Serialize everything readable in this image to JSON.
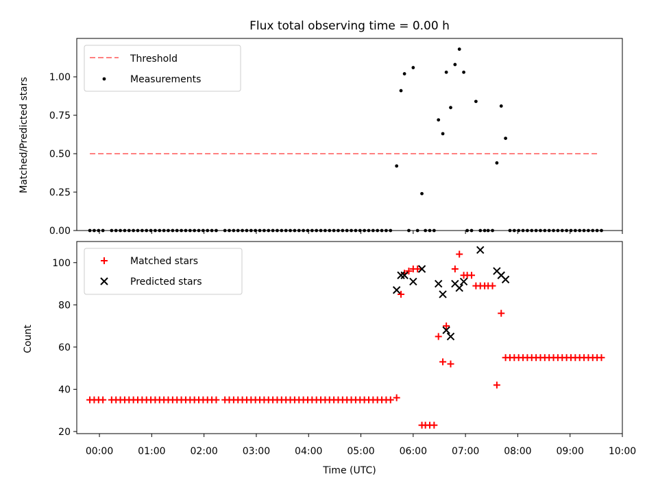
{
  "chart_data": [
    {
      "type": "scatter",
      "title": "Flux total observing time = 0.00 h",
      "xlabel": "",
      "ylabel": "Matched/Predicted stars",
      "xlim": [
        "23:34",
        "10:00"
      ],
      "ylim": [
        0,
        1.25
      ],
      "yticks": [
        "0.00",
        "0.25",
        "0.50",
        "0.75",
        "1.00"
      ],
      "legend": {
        "position": "upper-left",
        "entries": [
          "Threshold",
          "Measurements"
        ]
      },
      "series": [
        {
          "name": "Threshold",
          "kind": "dashed-line",
          "color": "#ff7f7f",
          "points": [
            [
              "23:49",
              0.5
            ],
            [
              "09:34",
              0.5
            ]
          ]
        },
        {
          "name": "Measurements",
          "kind": "scatter",
          "marker": "dot",
          "color": "#000000",
          "points": [
            [
              "23:49",
              0
            ],
            [
              "23:54",
              0
            ],
            [
              "23:59",
              0
            ],
            [
              "00:04",
              0
            ],
            [
              "00:14",
              0
            ],
            [
              "00:19",
              0
            ],
            [
              "00:24",
              0
            ],
            [
              "00:29",
              0
            ],
            [
              "00:34",
              0
            ],
            [
              "00:39",
              0
            ],
            [
              "00:44",
              0
            ],
            [
              "00:49",
              0
            ],
            [
              "00:54",
              0
            ],
            [
              "00:59",
              0
            ],
            [
              "01:04",
              0
            ],
            [
              "01:09",
              0
            ],
            [
              "01:14",
              0
            ],
            [
              "01:19",
              0
            ],
            [
              "01:24",
              0
            ],
            [
              "01:29",
              0
            ],
            [
              "01:34",
              0
            ],
            [
              "01:39",
              0
            ],
            [
              "01:44",
              0
            ],
            [
              "01:49",
              0
            ],
            [
              "01:54",
              0
            ],
            [
              "01:59",
              0
            ],
            [
              "02:04",
              0
            ],
            [
              "02:09",
              0
            ],
            [
              "02:14",
              0
            ],
            [
              "02:24",
              0
            ],
            [
              "02:29",
              0
            ],
            [
              "02:34",
              0
            ],
            [
              "02:39",
              0
            ],
            [
              "02:44",
              0
            ],
            [
              "02:49",
              0
            ],
            [
              "02:54",
              0
            ],
            [
              "02:59",
              0
            ],
            [
              "03:04",
              0
            ],
            [
              "03:09",
              0
            ],
            [
              "03:14",
              0
            ],
            [
              "03:19",
              0
            ],
            [
              "03:24",
              0
            ],
            [
              "03:29",
              0
            ],
            [
              "03:34",
              0
            ],
            [
              "03:39",
              0
            ],
            [
              "03:44",
              0
            ],
            [
              "03:49",
              0
            ],
            [
              "03:54",
              0
            ],
            [
              "03:59",
              0
            ],
            [
              "04:04",
              0
            ],
            [
              "04:09",
              0
            ],
            [
              "04:14",
              0
            ],
            [
              "04:19",
              0
            ],
            [
              "04:24",
              0
            ],
            [
              "04:29",
              0
            ],
            [
              "04:34",
              0
            ],
            [
              "04:39",
              0
            ],
            [
              "04:44",
              0
            ],
            [
              "04:49",
              0
            ],
            [
              "04:54",
              0
            ],
            [
              "04:59",
              0
            ],
            [
              "05:04",
              0
            ],
            [
              "05:09",
              0
            ],
            [
              "05:14",
              0
            ],
            [
              "05:19",
              0
            ],
            [
              "05:24",
              0
            ],
            [
              "05:29",
              0
            ],
            [
              "05:34",
              0
            ],
            [
              "05:41",
              0.42
            ],
            [
              "05:46",
              0.91
            ],
            [
              "05:50",
              1.02
            ],
            [
              "05:55",
              0
            ],
            [
              "06:00",
              1.06
            ],
            [
              "06:05",
              0
            ],
            [
              "06:10",
              0.24
            ],
            [
              "06:14",
              0
            ],
            [
              "06:19",
              0
            ],
            [
              "06:24",
              0
            ],
            [
              "06:29",
              0.72
            ],
            [
              "06:34",
              0.63
            ],
            [
              "06:38",
              1.03
            ],
            [
              "06:43",
              0.8
            ],
            [
              "06:48",
              1.08
            ],
            [
              "06:53",
              1.18
            ],
            [
              "06:58",
              1.03
            ],
            [
              "07:02",
              0
            ],
            [
              "07:07",
              0
            ],
            [
              "07:12",
              0.84
            ],
            [
              "07:17",
              0
            ],
            [
              "07:22",
              0
            ],
            [
              "07:26",
              0
            ],
            [
              "07:31",
              0
            ],
            [
              "07:36",
              0.44
            ],
            [
              "07:41",
              0.81
            ],
            [
              "07:46",
              0.6
            ],
            [
              "07:51",
              0
            ],
            [
              "07:56",
              0
            ],
            [
              "08:01",
              0
            ],
            [
              "08:06",
              0
            ],
            [
              "08:11",
              0
            ],
            [
              "08:16",
              0
            ],
            [
              "08:21",
              0
            ],
            [
              "08:26",
              0
            ],
            [
              "08:31",
              0
            ],
            [
              "08:36",
              0
            ],
            [
              "08:41",
              0
            ],
            [
              "08:46",
              0
            ],
            [
              "08:51",
              0
            ],
            [
              "08:56",
              0
            ],
            [
              "09:01",
              0
            ],
            [
              "09:06",
              0
            ],
            [
              "09:11",
              0
            ],
            [
              "09:16",
              0
            ],
            [
              "09:21",
              0
            ],
            [
              "09:26",
              0
            ],
            [
              "09:31",
              0
            ],
            [
              "09:36",
              0
            ]
          ]
        }
      ]
    },
    {
      "type": "scatter",
      "title": "",
      "xlabel": "Time (UTC)",
      "ylabel": "Count",
      "xlim": [
        "23:34",
        "10:00"
      ],
      "ylim": [
        19,
        110
      ],
      "xticks": [
        "00:00",
        "01:00",
        "02:00",
        "03:00",
        "04:00",
        "05:00",
        "06:00",
        "07:00",
        "08:00",
        "09:00",
        "10:00"
      ],
      "yticks": [
        "20",
        "40",
        "60",
        "80",
        "100"
      ],
      "legend": {
        "position": "upper-left",
        "entries": [
          "Matched stars",
          "Predicted stars"
        ]
      },
      "series": [
        {
          "name": "Matched stars",
          "kind": "scatter",
          "marker": "plus",
          "color": "#ff0000",
          "points": [
            [
              "23:49",
              35
            ],
            [
              "23:54",
              35
            ],
            [
              "23:59",
              35
            ],
            [
              "00:04",
              35
            ],
            [
              "00:14",
              35
            ],
            [
              "00:19",
              35
            ],
            [
              "00:24",
              35
            ],
            [
              "00:29",
              35
            ],
            [
              "00:34",
              35
            ],
            [
              "00:39",
              35
            ],
            [
              "00:44",
              35
            ],
            [
              "00:49",
              35
            ],
            [
              "00:54",
              35
            ],
            [
              "00:59",
              35
            ],
            [
              "01:04",
              35
            ],
            [
              "01:09",
              35
            ],
            [
              "01:14",
              35
            ],
            [
              "01:19",
              35
            ],
            [
              "01:24",
              35
            ],
            [
              "01:29",
              35
            ],
            [
              "01:34",
              35
            ],
            [
              "01:39",
              35
            ],
            [
              "01:44",
              35
            ],
            [
              "01:49",
              35
            ],
            [
              "01:54",
              35
            ],
            [
              "01:59",
              35
            ],
            [
              "02:04",
              35
            ],
            [
              "02:09",
              35
            ],
            [
              "02:14",
              35
            ],
            [
              "02:24",
              35
            ],
            [
              "02:29",
              35
            ],
            [
              "02:34",
              35
            ],
            [
              "02:39",
              35
            ],
            [
              "02:44",
              35
            ],
            [
              "02:49",
              35
            ],
            [
              "02:54",
              35
            ],
            [
              "02:59",
              35
            ],
            [
              "03:04",
              35
            ],
            [
              "03:09",
              35
            ],
            [
              "03:14",
              35
            ],
            [
              "03:19",
              35
            ],
            [
              "03:24",
              35
            ],
            [
              "03:29",
              35
            ],
            [
              "03:34",
              35
            ],
            [
              "03:39",
              35
            ],
            [
              "03:44",
              35
            ],
            [
              "03:49",
              35
            ],
            [
              "03:54",
              35
            ],
            [
              "03:59",
              35
            ],
            [
              "04:04",
              35
            ],
            [
              "04:09",
              35
            ],
            [
              "04:14",
              35
            ],
            [
              "04:19",
              35
            ],
            [
              "04:24",
              35
            ],
            [
              "04:29",
              35
            ],
            [
              "04:34",
              35
            ],
            [
              "04:39",
              35
            ],
            [
              "04:44",
              35
            ],
            [
              "04:49",
              35
            ],
            [
              "04:54",
              35
            ],
            [
              "04:59",
              35
            ],
            [
              "05:04",
              35
            ],
            [
              "05:09",
              35
            ],
            [
              "05:14",
              35
            ],
            [
              "05:19",
              35
            ],
            [
              "05:24",
              35
            ],
            [
              "05:29",
              35
            ],
            [
              "05:34",
              35
            ],
            [
              "05:41",
              36
            ],
            [
              "05:46",
              85
            ],
            [
              "05:50",
              95
            ],
            [
              "05:55",
              96
            ],
            [
              "06:00",
              97
            ],
            [
              "06:05",
              97
            ],
            [
              "06:10",
              23
            ],
            [
              "06:14",
              23
            ],
            [
              "06:19",
              23
            ],
            [
              "06:24",
              23
            ],
            [
              "06:29",
              65
            ],
            [
              "06:34",
              53
            ],
            [
              "06:38",
              70
            ],
            [
              "06:43",
              52
            ],
            [
              "06:48",
              97
            ],
            [
              "06:53",
              104
            ],
            [
              "06:58",
              94
            ],
            [
              "07:02",
              94
            ],
            [
              "07:07",
              94
            ],
            [
              "07:12",
              89
            ],
            [
              "07:17",
              89
            ],
            [
              "07:22",
              89
            ],
            [
              "07:26",
              89
            ],
            [
              "07:31",
              89
            ],
            [
              "07:36",
              42
            ],
            [
              "07:41",
              76
            ],
            [
              "07:46",
              55
            ],
            [
              "07:51",
              55
            ],
            [
              "07:56",
              55
            ],
            [
              "08:01",
              55
            ],
            [
              "08:06",
              55
            ],
            [
              "08:11",
              55
            ],
            [
              "08:16",
              55
            ],
            [
              "08:21",
              55
            ],
            [
              "08:26",
              55
            ],
            [
              "08:31",
              55
            ],
            [
              "08:36",
              55
            ],
            [
              "08:41",
              55
            ],
            [
              "08:46",
              55
            ],
            [
              "08:51",
              55
            ],
            [
              "08:56",
              55
            ],
            [
              "09:01",
              55
            ],
            [
              "09:06",
              55
            ],
            [
              "09:11",
              55
            ],
            [
              "09:16",
              55
            ],
            [
              "09:21",
              55
            ],
            [
              "09:26",
              55
            ],
            [
              "09:31",
              55
            ],
            [
              "09:36",
              55
            ]
          ]
        },
        {
          "name": "Predicted stars",
          "kind": "scatter",
          "marker": "x",
          "color": "#000000",
          "points": [
            [
              "05:41",
              87
            ],
            [
              "05:46",
              94
            ],
            [
              "05:50",
              94
            ],
            [
              "06:00",
              91
            ],
            [
              "06:10",
              97
            ],
            [
              "06:29",
              90
            ],
            [
              "06:34",
              85
            ],
            [
              "06:38",
              68
            ],
            [
              "06:43",
              65
            ],
            [
              "06:48",
              90
            ],
            [
              "06:53",
              88
            ],
            [
              "06:58",
              91
            ],
            [
              "07:17",
              106
            ],
            [
              "07:36",
              96
            ],
            [
              "07:41",
              94
            ],
            [
              "07:46",
              92
            ]
          ]
        }
      ]
    }
  ]
}
